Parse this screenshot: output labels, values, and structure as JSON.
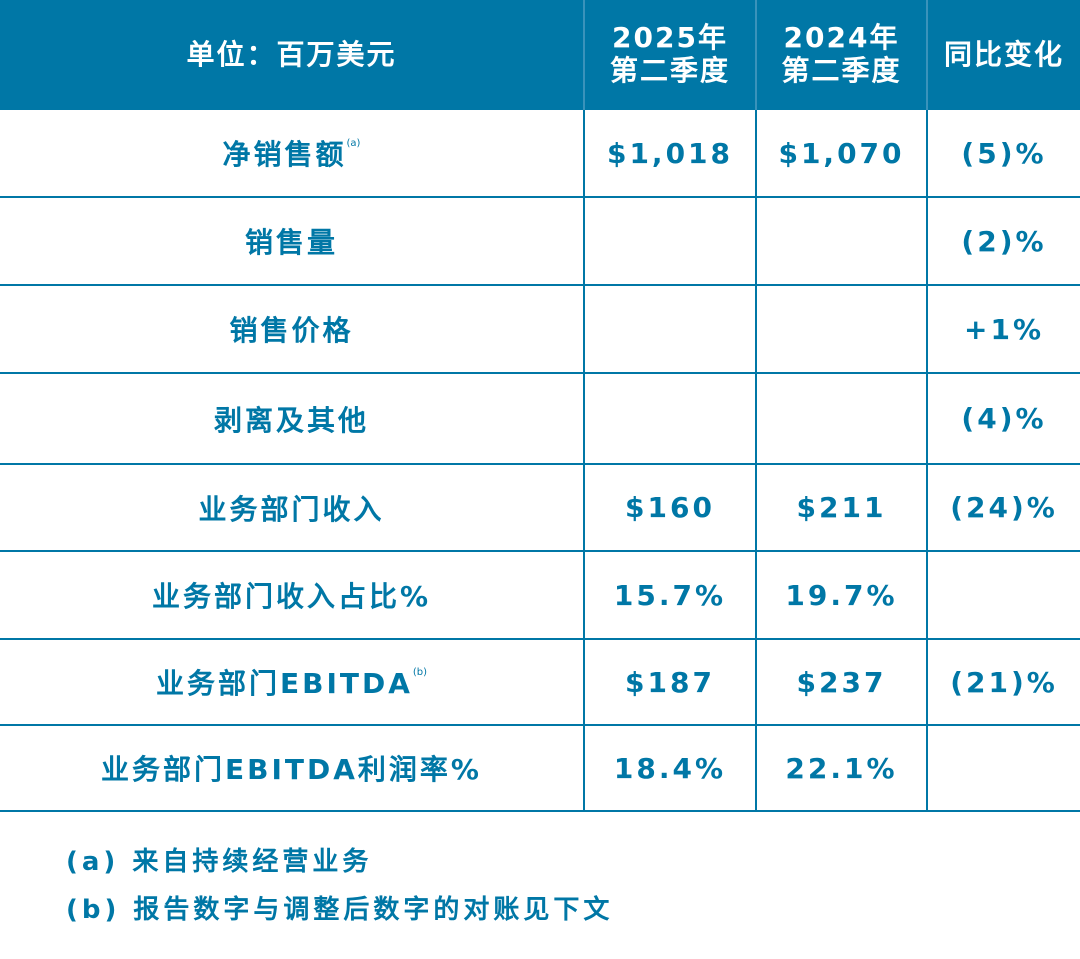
{
  "header": {
    "unit": "单位：百万美元",
    "col1": [
      "2025年",
      "第二季度"
    ],
    "col2": [
      "2024年",
      "第二季度"
    ],
    "col3": "同比变化"
  },
  "rows": [
    {
      "label": "净销售额",
      "sup": "(a)",
      "v2025": "$1,018",
      "v2024": "$1,070",
      "change": "(5)%"
    },
    {
      "label": "销售量",
      "sup": "",
      "v2025": "",
      "v2024": "",
      "change": "(2)%"
    },
    {
      "label": "销售价格",
      "sup": "",
      "v2025": "",
      "v2024": "",
      "change": "+1%"
    },
    {
      "label": "剥离及其他",
      "sup": "",
      "v2025": "",
      "v2024": "",
      "change": "(4)%"
    },
    {
      "label": "业务部门收入",
      "sup": "",
      "v2025": "$160",
      "v2024": "$211",
      "change": "(24)%"
    },
    {
      "label": "业务部门收入占比%",
      "sup": "",
      "v2025": "15.7%",
      "v2024": "19.7%",
      "change": ""
    },
    {
      "label": "业务部门EBITDA",
      "sup": "(b)",
      "v2025": "$187",
      "v2024": "$237",
      "change": "(21)%"
    },
    {
      "label": "业务部门EBITDA利润率%",
      "sup": "",
      "v2025": "18.4%",
      "v2024": "22.1%",
      "change": ""
    }
  ],
  "footnotes": [
    "(a) 来自持续经营业务",
    "(b) 报告数字与调整后数字的对账见下文"
  ],
  "colors": {
    "brand": "#0077a6"
  }
}
